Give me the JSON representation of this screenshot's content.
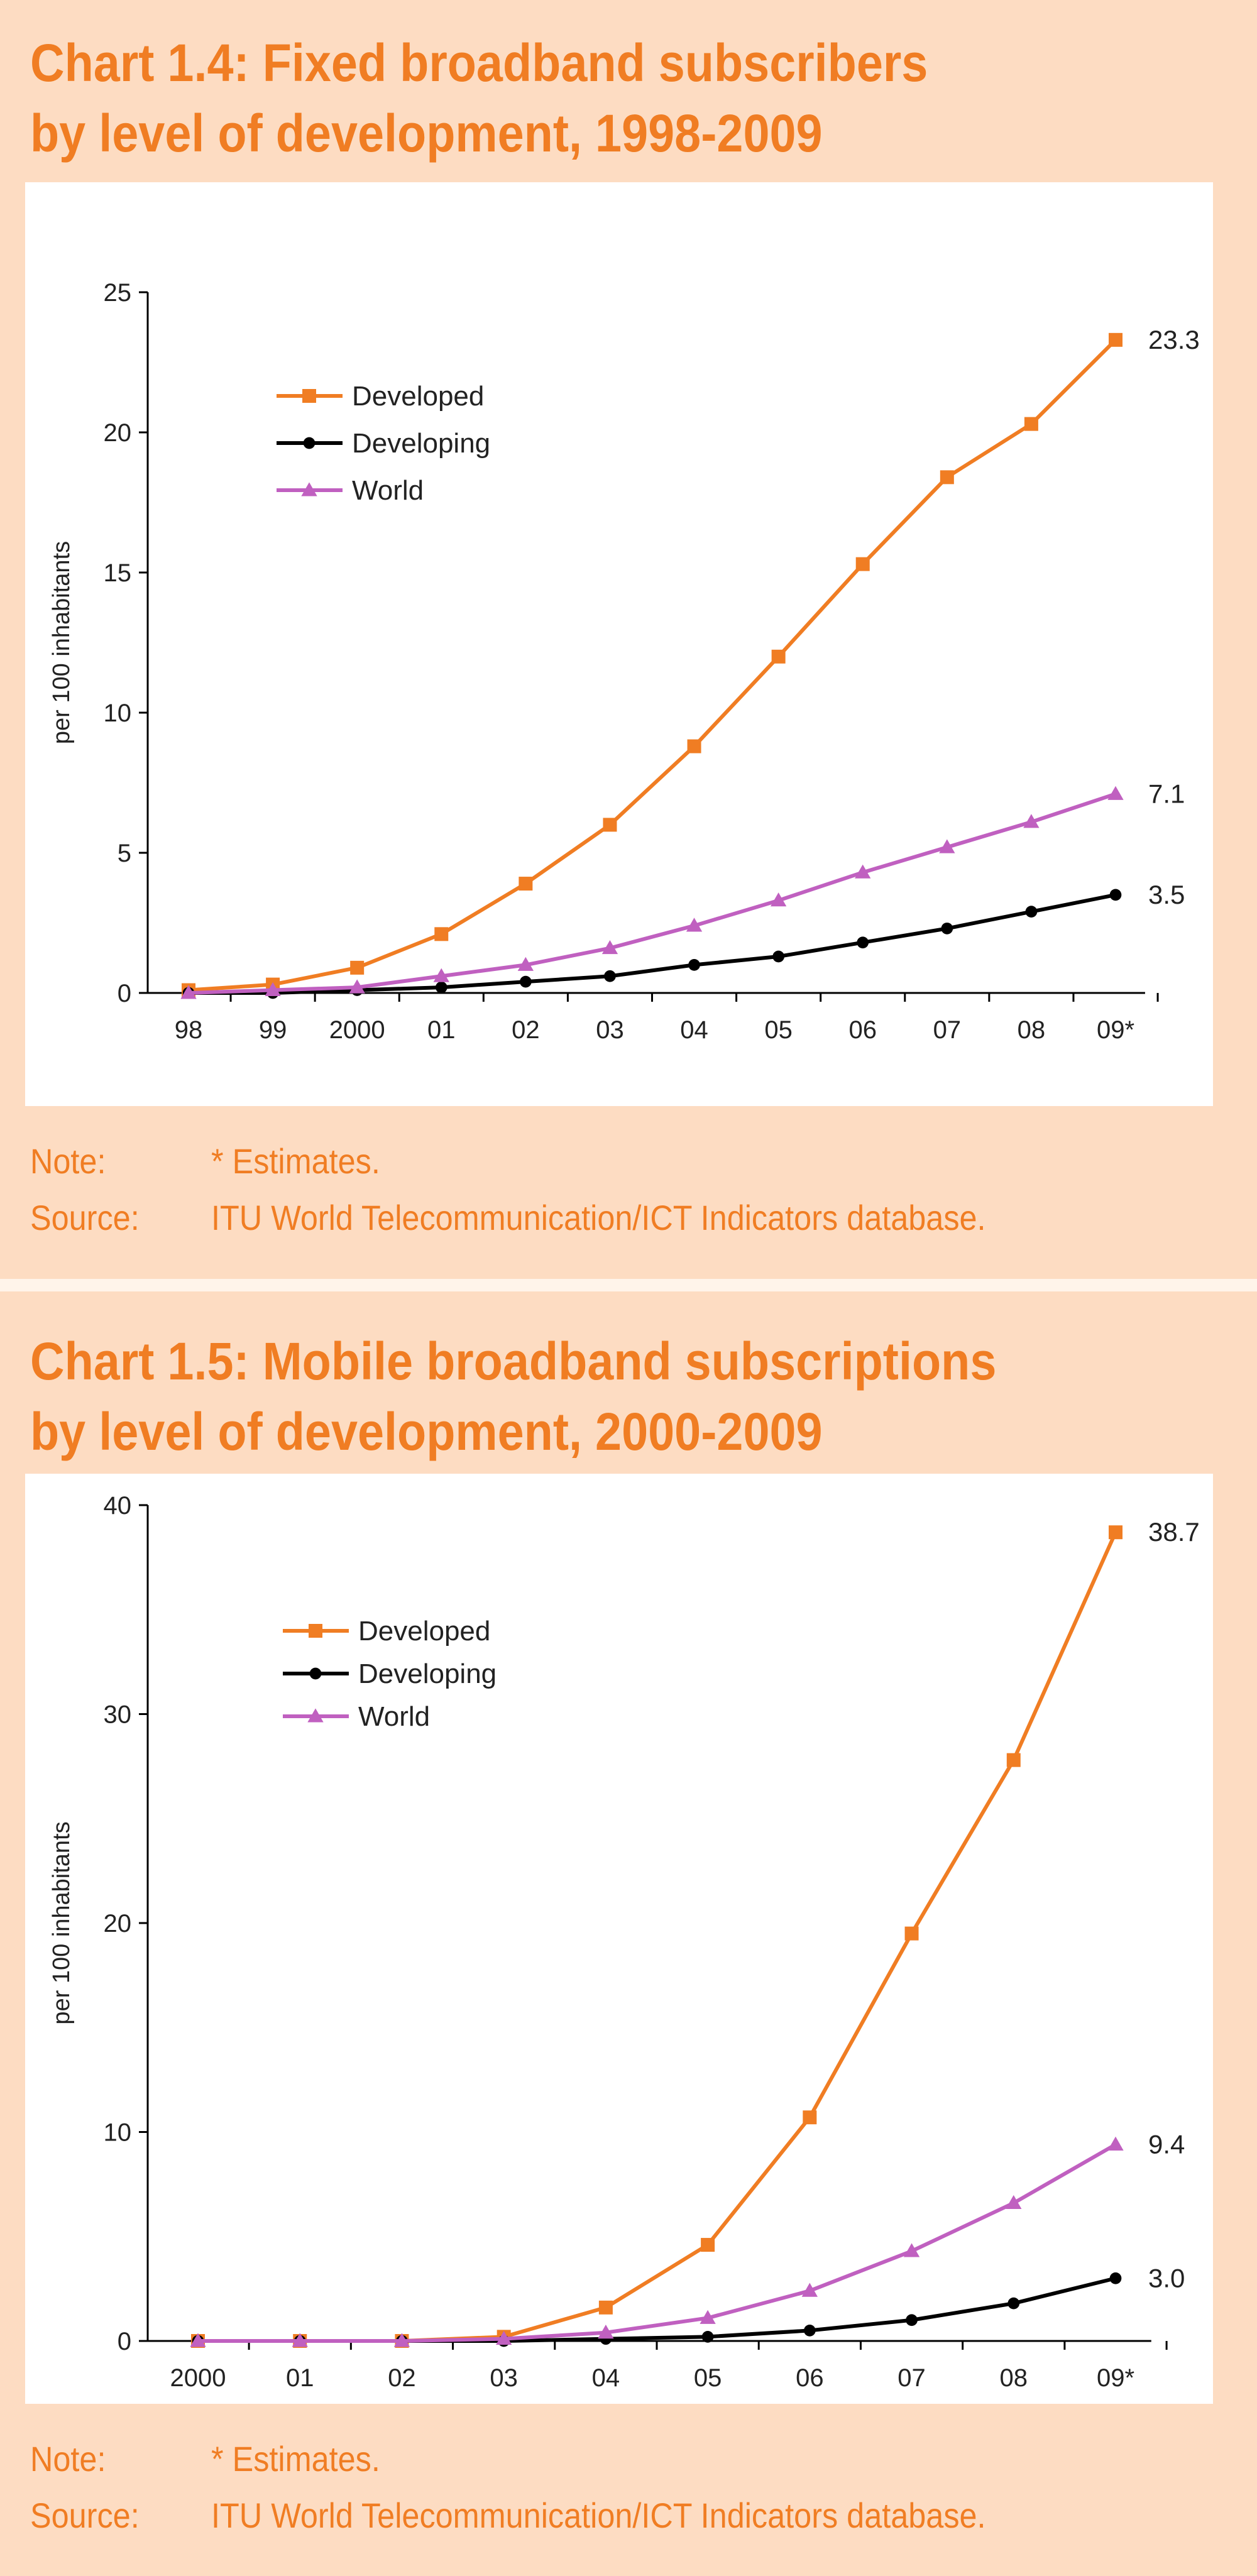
{
  "charts": [
    {
      "title_line1": "Chart 1.4: Fixed broadband subscribers",
      "title_line2": "by level of development, 1998-2009",
      "note_key": "Note:",
      "note_text": "* Estimates.",
      "source_key": "Source:",
      "source_text": "ITU World Telecommunication/ICT Indicators database."
    },
    {
      "title_line1": "Chart 1.5: Mobile broadband subscriptions",
      "title_line2": "by level of development, 2000-2009",
      "note_key": "Note:",
      "note_text": "* Estimates.",
      "source_key": "Source:",
      "source_text": "ITU World Telecommunication/ICT Indicators database."
    }
  ],
  "chart_data": [
    {
      "type": "line",
      "title": "Chart 1.4: Fixed broadband subscribers by level of development, 1998-2009",
      "ylabel": "per 100 inhabitants",
      "xlabel": "",
      "categories": [
        "98",
        "99",
        "2000",
        "01",
        "02",
        "03",
        "04",
        "05",
        "06",
        "07",
        "08",
        "09*"
      ],
      "ylim": [
        0,
        25
      ],
      "yticks": [
        0,
        5,
        10,
        15,
        20,
        25
      ],
      "legend_position": "top-left",
      "grid": false,
      "series": [
        {
          "name": "Developed",
          "color": "#f07d23",
          "marker": "square",
          "values": [
            0.1,
            0.3,
            0.9,
            2.1,
            3.9,
            6.0,
            8.8,
            12.0,
            15.3,
            18.4,
            20.3,
            23.3
          ],
          "end_label": "23.3"
        },
        {
          "name": "Developing",
          "color": "#000000",
          "marker": "circle",
          "values": [
            0.0,
            0.0,
            0.1,
            0.2,
            0.4,
            0.6,
            1.0,
            1.3,
            1.8,
            2.3,
            2.9,
            3.5
          ],
          "end_label": "3.5"
        },
        {
          "name": "World",
          "color": "#c060c0",
          "marker": "triangle",
          "values": [
            0.0,
            0.1,
            0.2,
            0.6,
            1.0,
            1.6,
            2.4,
            3.3,
            4.3,
            5.2,
            6.1,
            7.1
          ],
          "end_label": "7.1"
        }
      ]
    },
    {
      "type": "line",
      "title": "Chart 1.5: Mobile broadband subscriptions by level of development, 2000-2009",
      "ylabel": "per 100 inhabitants",
      "xlabel": "",
      "categories": [
        "2000",
        "01",
        "02",
        "03",
        "04",
        "05",
        "06",
        "07",
        "08",
        "09*"
      ],
      "ylim": [
        0,
        40
      ],
      "yticks": [
        0,
        10,
        20,
        30,
        40
      ],
      "legend_position": "top-left",
      "grid": false,
      "series": [
        {
          "name": "Developed",
          "color": "#f07d23",
          "marker": "square",
          "values": [
            0.0,
            0.0,
            0.0,
            0.2,
            1.6,
            4.6,
            10.7,
            19.5,
            27.8,
            38.7
          ],
          "end_label": "38.7"
        },
        {
          "name": "Developing",
          "color": "#000000",
          "marker": "circle",
          "values": [
            0.0,
            0.0,
            0.0,
            0.0,
            0.1,
            0.2,
            0.5,
            1.0,
            1.8,
            3.0
          ],
          "end_label": "3.0"
        },
        {
          "name": "World",
          "color": "#c060c0",
          "marker": "triangle",
          "values": [
            0.0,
            0.0,
            0.0,
            0.1,
            0.4,
            1.1,
            2.4,
            4.3,
            6.6,
            9.4
          ],
          "end_label": "9.4"
        }
      ]
    }
  ]
}
